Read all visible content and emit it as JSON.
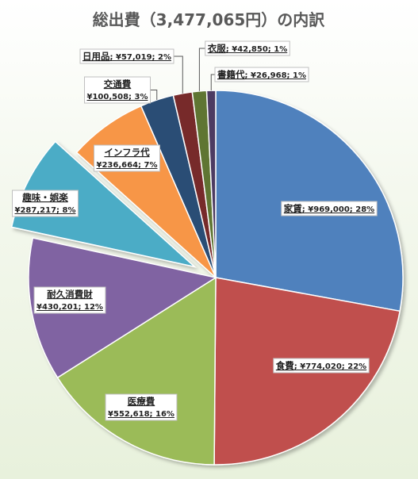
{
  "title": "総出費（3,477,065円）の内訳",
  "chart_data": {
    "type": "pie",
    "title": "総出費（3,477,065円）の内訳",
    "currency_symbol": "¥",
    "total": 3477065,
    "exploded_slice": "趣味・娯楽",
    "slices": [
      {
        "name": "家賃",
        "value": 969000,
        "value_text": "¥969,000",
        "percent_text": "28%",
        "color": "#4f81bd"
      },
      {
        "name": "食費",
        "value": 774020,
        "value_text": "¥774,020",
        "percent_text": "22%",
        "color": "#c0504d"
      },
      {
        "name": "医療費",
        "value": 552618,
        "value_text": "¥552,618",
        "percent_text": "16%",
        "color": "#9bbb59"
      },
      {
        "name": "耐久消費財",
        "value": 430201,
        "value_text": "¥430,201",
        "percent_text": "12%",
        "color": "#8064a2"
      },
      {
        "name": "趣味・娯楽",
        "value": 287217,
        "value_text": "¥287,217",
        "percent_text": "8%",
        "color": "#4bacc6"
      },
      {
        "name": "インフラ代",
        "value": 236664,
        "value_text": "¥236,664",
        "percent_text": "7%",
        "color": "#f79646"
      },
      {
        "name": "交通費",
        "value": 100508,
        "value_text": "¥100,508",
        "percent_text": "3%",
        "color": "#2c4d75"
      },
      {
        "name": "日用品",
        "value": 57019,
        "value_text": "¥57,019",
        "percent_text": "2%",
        "color": "#772c2a"
      },
      {
        "name": "衣服",
        "value": 42850,
        "value_text": "¥42,850",
        "percent_text": "1%",
        "color": "#5f7530"
      },
      {
        "name": "書籍代",
        "value": 26968,
        "value_text": "¥26,968",
        "percent_text": "1%",
        "color": "#4d3b62"
      }
    ]
  }
}
